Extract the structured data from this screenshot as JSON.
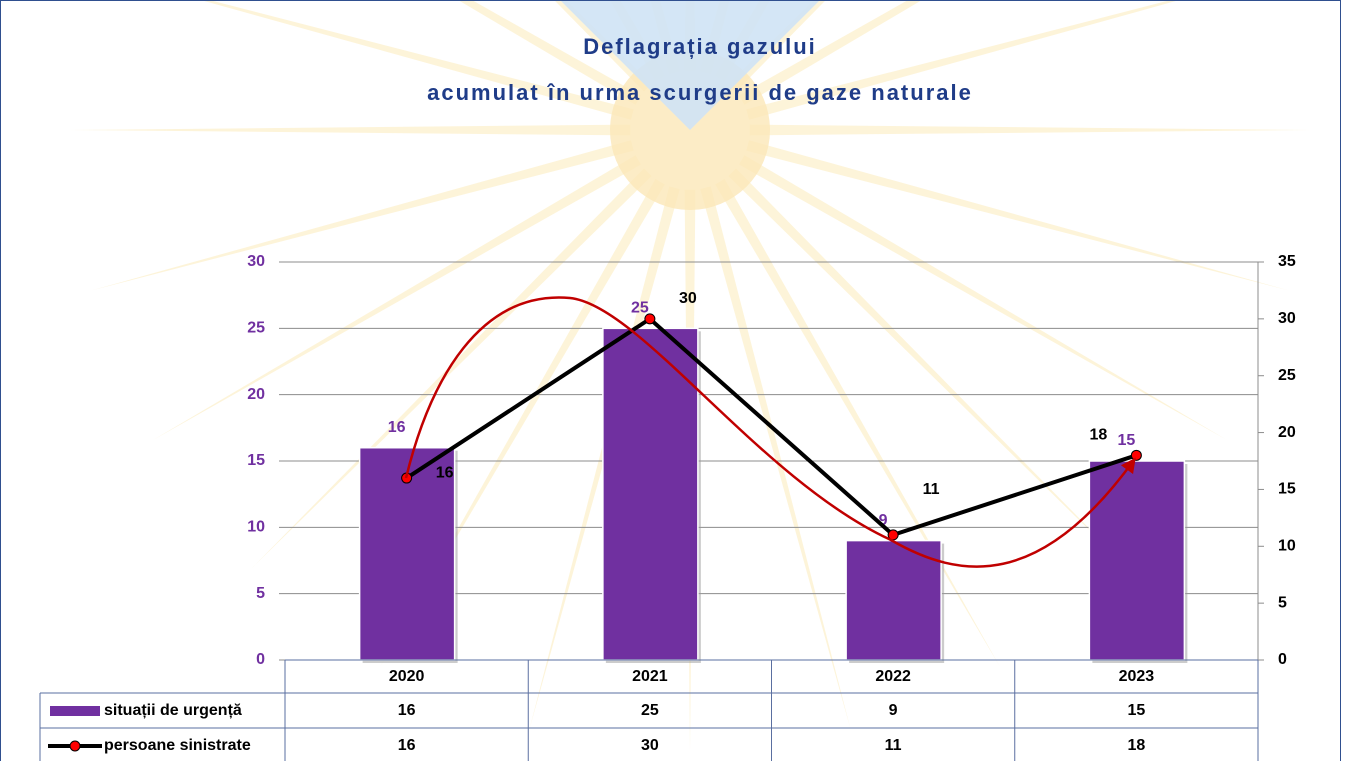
{
  "chart_data": {
    "type": "combo",
    "title": [
      "Deflagrația gazului",
      "acumulat în urma scurgerii de gaze naturale"
    ],
    "categories": [
      "2020",
      "2021",
      "2022",
      "2023"
    ],
    "series": [
      {
        "name": "situații de urgență",
        "type": "bar",
        "color": "#7030a0",
        "values": [
          16,
          25,
          9,
          15
        ]
      },
      {
        "name": "persoane sinistrate",
        "type": "line",
        "color": "#000000",
        "marker_color": "#ff0000",
        "axis": "y2",
        "values": [
          16,
          30,
          11,
          18
        ]
      }
    ],
    "ylim": [
      0,
      30
    ],
    "yticks": [
      0,
      5,
      10,
      15,
      20,
      25,
      30
    ],
    "y2lim": [
      0,
      35
    ],
    "y2ticks": [
      0,
      5,
      10,
      15,
      20,
      25,
      30,
      35
    ],
    "grid": true,
    "data_table": true
  }
}
